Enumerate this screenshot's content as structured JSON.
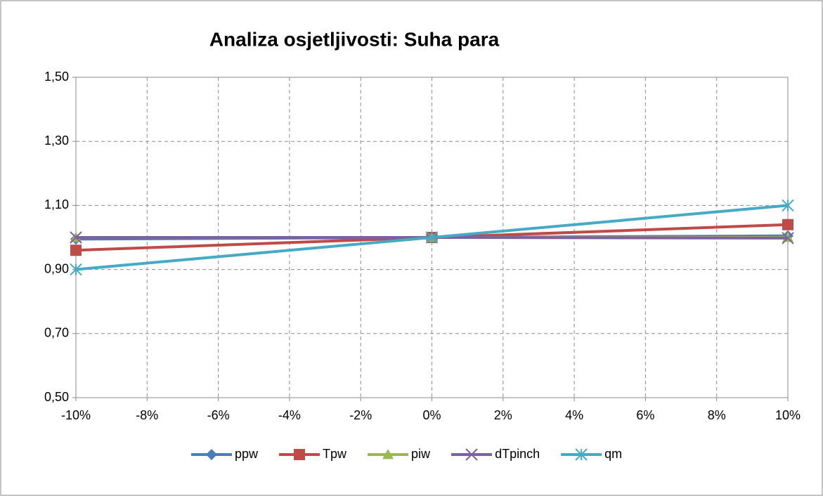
{
  "chart_data": {
    "type": "line",
    "title": "Analiza osjetljivosti: Suha para",
    "x": [
      -10,
      0,
      10
    ],
    "series": [
      {
        "name": "ppw",
        "color": "#4a7ebb",
        "marker": "diamond",
        "values": [
          0.995,
          1.0,
          1.005
        ]
      },
      {
        "name": "Tpw",
        "color": "#be4b48",
        "marker": "square",
        "values": [
          0.96,
          1.0,
          1.04
        ]
      },
      {
        "name": "piw",
        "color": "#98b954",
        "marker": "triangle",
        "values": [
          1.0,
          1.0,
          1.0
        ]
      },
      {
        "name": "dTpinch",
        "color": "#7d60a0",
        "marker": "x",
        "values": [
          1.0,
          1.0,
          0.998
        ]
      },
      {
        "name": "qm",
        "color": "#46aac5",
        "marker": "star",
        "values": [
          0.9,
          1.0,
          1.1
        ]
      }
    ],
    "xlim": [
      -10,
      10
    ],
    "xticks": [
      {
        "value": -10,
        "label": "-10%"
      },
      {
        "value": -8,
        "label": "-8%"
      },
      {
        "value": -6,
        "label": "-6%"
      },
      {
        "value": -4,
        "label": "-4%"
      },
      {
        "value": -2,
        "label": "-2%"
      },
      {
        "value": 0,
        "label": "0%"
      },
      {
        "value": 2,
        "label": "2%"
      },
      {
        "value": 4,
        "label": "4%"
      },
      {
        "value": 6,
        "label": "6%"
      },
      {
        "value": 8,
        "label": "8%"
      },
      {
        "value": 10,
        "label": "10%"
      }
    ],
    "ylim": [
      0.5,
      1.5
    ],
    "yticks": [
      {
        "value": 0.5,
        "label": "0,50"
      },
      {
        "value": 0.7,
        "label": "0,70"
      },
      {
        "value": 0.9,
        "label": "0,90"
      },
      {
        "value": 1.1,
        "label": "1,10"
      },
      {
        "value": 1.3,
        "label": "1,30"
      },
      {
        "value": 1.5,
        "label": "1,50"
      }
    ],
    "grid": true,
    "legend": "bottom"
  }
}
